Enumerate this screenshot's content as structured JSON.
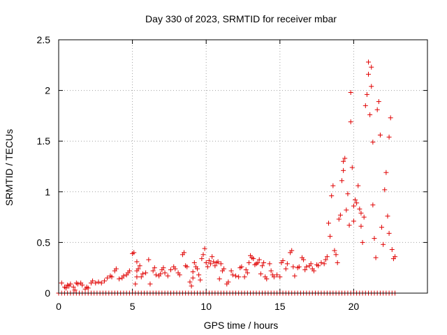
{
  "chart_data": {
    "type": "scatter",
    "title": "Day 330 of 2023, SRMTID for receiver mbar",
    "xlabel": "GPS time / hours",
    "ylabel": "SRMTID / TECUs",
    "xlim": [
      0,
      25
    ],
    "ylim": [
      0,
      2.5
    ],
    "xticks": [
      0,
      5,
      10,
      15,
      20
    ],
    "xtick_labels": [
      "0",
      "5",
      "10",
      "15",
      "20"
    ],
    "yticks": [
      0,
      0.5,
      1,
      1.5,
      2,
      2.5
    ],
    "ytick_labels": [
      "0",
      "0.5",
      "1",
      "1.5",
      "2",
      "2.5"
    ],
    "grid": true,
    "marker": "+",
    "series": [
      {
        "name": "SRMTID",
        "color": "#e00000",
        "points": [
          [
            0.2,
            0.1
          ],
          [
            0.4,
            0.06
          ],
          [
            0.5,
            0.05
          ],
          [
            0.6,
            0.08
          ],
          [
            0.7,
            0.07
          ],
          [
            0.8,
            0.09
          ],
          [
            1.0,
            0.06
          ],
          [
            1.1,
            0.03
          ],
          [
            1.2,
            0.1
          ],
          [
            1.3,
            0.09
          ],
          [
            1.5,
            0.1
          ],
          [
            1.6,
            0.08
          ],
          [
            1.8,
            0.04
          ],
          [
            1.9,
            0.06
          ],
          [
            2.0,
            0.05
          ],
          [
            2.2,
            0.1
          ],
          [
            2.3,
            0.12
          ],
          [
            2.5,
            0.1
          ],
          [
            2.7,
            0.11
          ],
          [
            2.9,
            0.1
          ],
          [
            3.1,
            0.12
          ],
          [
            3.3,
            0.15
          ],
          [
            3.5,
            0.17
          ],
          [
            3.6,
            0.16
          ],
          [
            3.8,
            0.22
          ],
          [
            3.9,
            0.24
          ],
          [
            4.1,
            0.14
          ],
          [
            4.3,
            0.15
          ],
          [
            4.4,
            0.17
          ],
          [
            4.6,
            0.18
          ],
          [
            4.7,
            0.2
          ],
          [
            4.8,
            0.22
          ],
          [
            5.0,
            0.39
          ],
          [
            5.1,
            0.4
          ],
          [
            5.2,
            0.09
          ],
          [
            5.3,
            0.16
          ],
          [
            5.3,
            0.22
          ],
          [
            5.3,
            0.31
          ],
          [
            5.4,
            0.24
          ],
          [
            5.5,
            0.27
          ],
          [
            5.6,
            0.16
          ],
          [
            5.7,
            0.19
          ],
          [
            5.9,
            0.2
          ],
          [
            6.1,
            0.33
          ],
          [
            6.2,
            0.09
          ],
          [
            6.4,
            0.22
          ],
          [
            6.5,
            0.25
          ],
          [
            6.6,
            0.18
          ],
          [
            6.8,
            0.17
          ],
          [
            6.9,
            0.19
          ],
          [
            7.0,
            0.23
          ],
          [
            7.1,
            0.25
          ],
          [
            7.2,
            0.2
          ],
          [
            7.4,
            0.17
          ],
          [
            7.6,
            0.23
          ],
          [
            7.8,
            0.26
          ],
          [
            7.9,
            0.24
          ],
          [
            8.1,
            0.2
          ],
          [
            8.2,
            0.18
          ],
          [
            8.4,
            0.38
          ],
          [
            8.5,
            0.4
          ],
          [
            8.6,
            0.27
          ],
          [
            8.7,
            0.26
          ],
          [
            8.9,
            0.11
          ],
          [
            9.0,
            0.07
          ],
          [
            9.1,
            0.15
          ],
          [
            9.1,
            0.21
          ],
          [
            9.2,
            0.3
          ],
          [
            9.3,
            0.26
          ],
          [
            9.4,
            0.24
          ],
          [
            9.5,
            0.18
          ],
          [
            9.6,
            0.13
          ],
          [
            9.7,
            0.34
          ],
          [
            9.8,
            0.38
          ],
          [
            9.9,
            0.44
          ],
          [
            10.0,
            0.3
          ],
          [
            10.1,
            0.26
          ],
          [
            10.2,
            0.32
          ],
          [
            10.3,
            0.29
          ],
          [
            10.4,
            0.36
          ],
          [
            10.5,
            0.31
          ],
          [
            10.6,
            0.27
          ],
          [
            10.7,
            0.3
          ],
          [
            10.8,
            0.31
          ],
          [
            10.9,
            0.14
          ],
          [
            11.0,
            0.29
          ],
          [
            11.1,
            0.22
          ],
          [
            11.2,
            0.24
          ],
          [
            11.4,
            0.09
          ],
          [
            11.5,
            0.11
          ],
          [
            11.7,
            0.22
          ],
          [
            11.8,
            0.18
          ],
          [
            12.0,
            0.17
          ],
          [
            12.2,
            0.16
          ],
          [
            12.3,
            0.25
          ],
          [
            12.4,
            0.26
          ],
          [
            12.6,
            0.16
          ],
          [
            12.7,
            0.23
          ],
          [
            12.8,
            0.2
          ],
          [
            12.9,
            0.3
          ],
          [
            13.0,
            0.37
          ],
          [
            13.1,
            0.35
          ],
          [
            13.2,
            0.34
          ],
          [
            13.3,
            0.28
          ],
          [
            13.4,
            0.29
          ],
          [
            13.5,
            0.3
          ],
          [
            13.6,
            0.33
          ],
          [
            13.7,
            0.19
          ],
          [
            13.8,
            0.27
          ],
          [
            13.9,
            0.3
          ],
          [
            14.0,
            0.16
          ],
          [
            14.1,
            0.14
          ],
          [
            14.3,
            0.29
          ],
          [
            14.4,
            0.22
          ],
          [
            14.5,
            0.18
          ],
          [
            14.6,
            0.16
          ],
          [
            14.8,
            0.18
          ],
          [
            15.0,
            0.16
          ],
          [
            15.1,
            0.3
          ],
          [
            15.2,
            0.32
          ],
          [
            15.4,
            0.24
          ],
          [
            15.5,
            0.29
          ],
          [
            15.7,
            0.4
          ],
          [
            15.8,
            0.42
          ],
          [
            15.9,
            0.26
          ],
          [
            16.0,
            0.17
          ],
          [
            16.2,
            0.25
          ],
          [
            16.3,
            0.26
          ],
          [
            16.5,
            0.35
          ],
          [
            16.6,
            0.33
          ],
          [
            16.7,
            0.23
          ],
          [
            16.8,
            0.26
          ],
          [
            17.0,
            0.27
          ],
          [
            17.1,
            0.29
          ],
          [
            17.2,
            0.24
          ],
          [
            17.3,
            0.22
          ],
          [
            17.5,
            0.28
          ],
          [
            17.6,
            0.27
          ],
          [
            17.8,
            0.3
          ],
          [
            18.0,
            0.29
          ],
          [
            18.1,
            0.33
          ],
          [
            18.2,
            0.36
          ],
          [
            18.3,
            0.69
          ],
          [
            18.4,
            0.56
          ],
          [
            18.5,
            0.96
          ],
          [
            18.6,
            1.06
          ],
          [
            18.7,
            0.42
          ],
          [
            18.8,
            0.38
          ],
          [
            18.9,
            0.3
          ],
          [
            19.0,
            0.73
          ],
          [
            19.1,
            0.77
          ],
          [
            19.2,
            1.11
          ],
          [
            19.3,
            1.21
          ],
          [
            19.3,
            1.3
          ],
          [
            19.4,
            1.33
          ],
          [
            19.5,
            0.82
          ],
          [
            19.6,
            0.98
          ],
          [
            19.7,
            0.67
          ],
          [
            19.8,
            1.98
          ],
          [
            19.8,
            1.69
          ],
          [
            19.9,
            1.24
          ],
          [
            20.0,
            0.71
          ],
          [
            20.0,
            0.86
          ],
          [
            20.1,
            0.92
          ],
          [
            20.2,
            0.89
          ],
          [
            20.3,
            1.06
          ],
          [
            20.4,
            0.83
          ],
          [
            20.5,
            0.79
          ],
          [
            20.5,
            0.66
          ],
          [
            20.6,
            0.5
          ],
          [
            20.7,
            0.75
          ],
          [
            20.8,
            1.85
          ],
          [
            20.9,
            1.96
          ],
          [
            21.0,
            2.28
          ],
          [
            21.0,
            2.16
          ],
          [
            21.1,
            1.76
          ],
          [
            21.2,
            2.23
          ],
          [
            21.2,
            2.04
          ],
          [
            21.3,
            1.49
          ],
          [
            21.3,
            0.87
          ],
          [
            21.4,
            0.54
          ],
          [
            21.5,
            0.35
          ],
          [
            21.6,
            1.81
          ],
          [
            21.7,
            1.89
          ],
          [
            21.8,
            1.56
          ],
          [
            21.9,
            0.65
          ],
          [
            22.0,
            0.48
          ],
          [
            22.1,
            1.02
          ],
          [
            22.2,
            1.19
          ],
          [
            22.3,
            0.76
          ],
          [
            22.4,
            0.59
          ],
          [
            22.4,
            1.54
          ],
          [
            22.5,
            1.73
          ],
          [
            22.6,
            0.43
          ],
          [
            22.7,
            0.34
          ],
          [
            22.8,
            0.36
          ]
        ]
      },
      {
        "name": "zero-baseline",
        "color": "#e00000",
        "x_start": 0.0,
        "x_end": 22.8,
        "x_step": 0.2,
        "y": 0.0
      }
    ]
  }
}
